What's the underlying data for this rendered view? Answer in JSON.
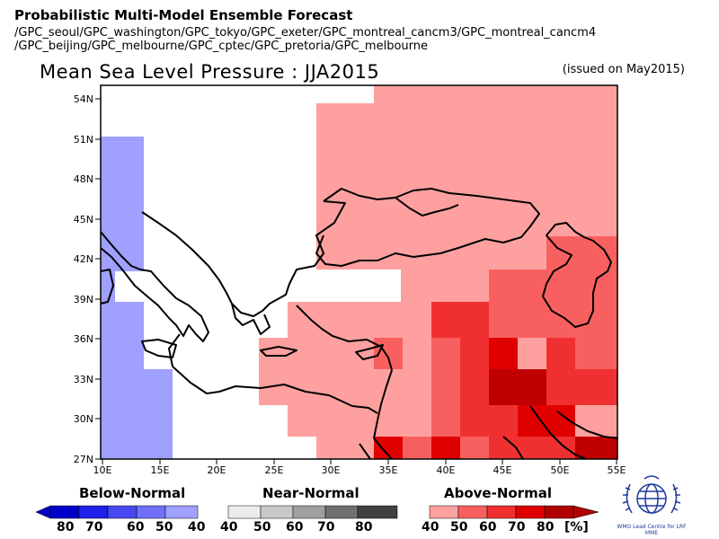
{
  "header": {
    "title": "Probabilistic Multi-Model Ensemble Forecast",
    "models_line1": "/GPC_seoul/GPC_washington/GPC_tokyo/GPC_exeter/GPC_montreal_cancm3/GPC_montreal_cancm4",
    "models_line2": "/GPC_beijing/GPC_melbourne/GPC_cptec/GPC_pretoria/GPC_melbourne"
  },
  "map": {
    "title": "Mean Sea Level Pressure : JJA2015",
    "issued": "(issued on May2015)",
    "lat_ticks": [
      "54N",
      "51N",
      "48N",
      "45N",
      "42N",
      "39N",
      "36N",
      "33N",
      "30N",
      "27N"
    ],
    "lon_ticks": [
      "10E",
      "15E",
      "20E",
      "25E",
      "30E",
      "35E",
      "40E",
      "45E",
      "50E",
      "55E"
    ]
  },
  "legend": {
    "below": {
      "label": "Below-Normal",
      "ticks": [
        "80",
        "70",
        "60",
        "50",
        "40"
      ],
      "colors": [
        "#0000c8",
        "#2020e8",
        "#4848f0",
        "#7070f8",
        "#a0a0ff"
      ]
    },
    "near": {
      "label": "Near-Normal",
      "ticks": [
        "40",
        "50",
        "60",
        "70",
        "80"
      ],
      "colors": [
        "#ececec",
        "#c8c8c8",
        "#a0a0a0",
        "#707070",
        "#404040"
      ]
    },
    "above": {
      "label": "Above-Normal",
      "ticks": [
        "40",
        "50",
        "60",
        "70",
        "80"
      ],
      "colors": [
        "#ffa0a0",
        "#f86060",
        "#f03030",
        "#e00000",
        "#b00000"
      ],
      "unit": "[%]"
    }
  },
  "logo": {
    "text": "WMO Lead Centre for LRF MME"
  }
}
